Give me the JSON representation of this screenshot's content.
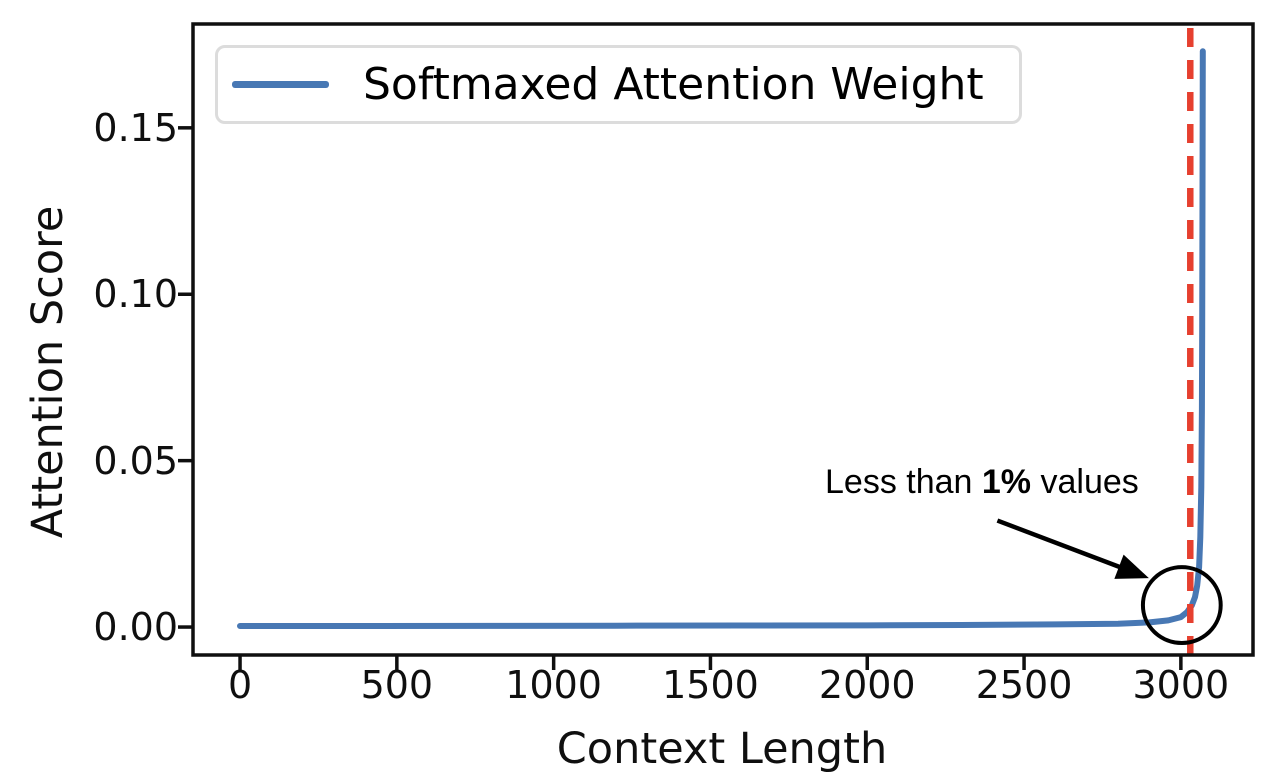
{
  "page": {
    "background": "#ffffff"
  },
  "chart_data": {
    "type": "line",
    "title": "",
    "xlabel": "Context Length",
    "ylabel": "Attention Score",
    "xlim": [
      -150,
      3230
    ],
    "ylim": [
      -0.0084,
      0.1812
    ],
    "grid": false,
    "axis_color": "#0f0f0f",
    "x_ticks": [
      {
        "value": 0,
        "label": "0"
      },
      {
        "value": 500,
        "label": "500"
      },
      {
        "value": 1000,
        "label": "1000"
      },
      {
        "value": 1500,
        "label": "1500"
      },
      {
        "value": 2000,
        "label": "2000"
      },
      {
        "value": 2500,
        "label": "2500"
      },
      {
        "value": 3000,
        "label": "3000"
      }
    ],
    "y_ticks": [
      {
        "value": 0.0,
        "label": "0.00"
      },
      {
        "value": 0.05,
        "label": "0.05"
      },
      {
        "value": 0.1,
        "label": "0.10"
      },
      {
        "value": 0.15,
        "label": "0.15"
      }
    ],
    "legend": {
      "position": "upper-left",
      "entries": [
        {
          "label": "Softmaxed Attention Weight",
          "color": "#4878b4"
        }
      ]
    },
    "series": [
      {
        "name": "Softmaxed Attention Weight",
        "color": "#4878b4",
        "line_width": 6,
        "points": [
          [
            0,
            0.0003
          ],
          [
            400,
            0.0003
          ],
          [
            800,
            0.00035
          ],
          [
            1200,
            0.0004
          ],
          [
            1600,
            0.00045
          ],
          [
            2000,
            0.0005
          ],
          [
            2300,
            0.0006
          ],
          [
            2600,
            0.0008
          ],
          [
            2800,
            0.001
          ],
          [
            2900,
            0.0014
          ],
          [
            2960,
            0.002
          ],
          [
            3000,
            0.003
          ],
          [
            3020,
            0.0045
          ],
          [
            3035,
            0.0065
          ],
          [
            3045,
            0.009
          ],
          [
            3052,
            0.0125
          ],
          [
            3058,
            0.018
          ],
          [
            3062,
            0.027
          ],
          [
            3065,
            0.042
          ],
          [
            3067,
            0.065
          ],
          [
            3068,
            0.09
          ],
          [
            3069,
            0.13
          ],
          [
            3070,
            0.173
          ]
        ]
      }
    ],
    "reference_line": {
      "orientation": "vertical",
      "x": 3030,
      "color": "#e6402f",
      "width": 6.5,
      "dash": [
        19,
        13
      ]
    },
    "annotations": {
      "text": {
        "prefix": "Less than ",
        "bold": "1%",
        "suffix": " values",
        "color": "#000000"
      },
      "circle": {
        "cx": 3003,
        "cy": 0.0066,
        "rx": 124,
        "ry": 0.0114,
        "color": "#000000",
        "stroke_width": 4
      },
      "arrow": {
        "from": [
          2415,
          0.032
        ],
        "to": [
          2898,
          0.0147
        ],
        "color": "#000000",
        "width": 4.5
      }
    }
  }
}
